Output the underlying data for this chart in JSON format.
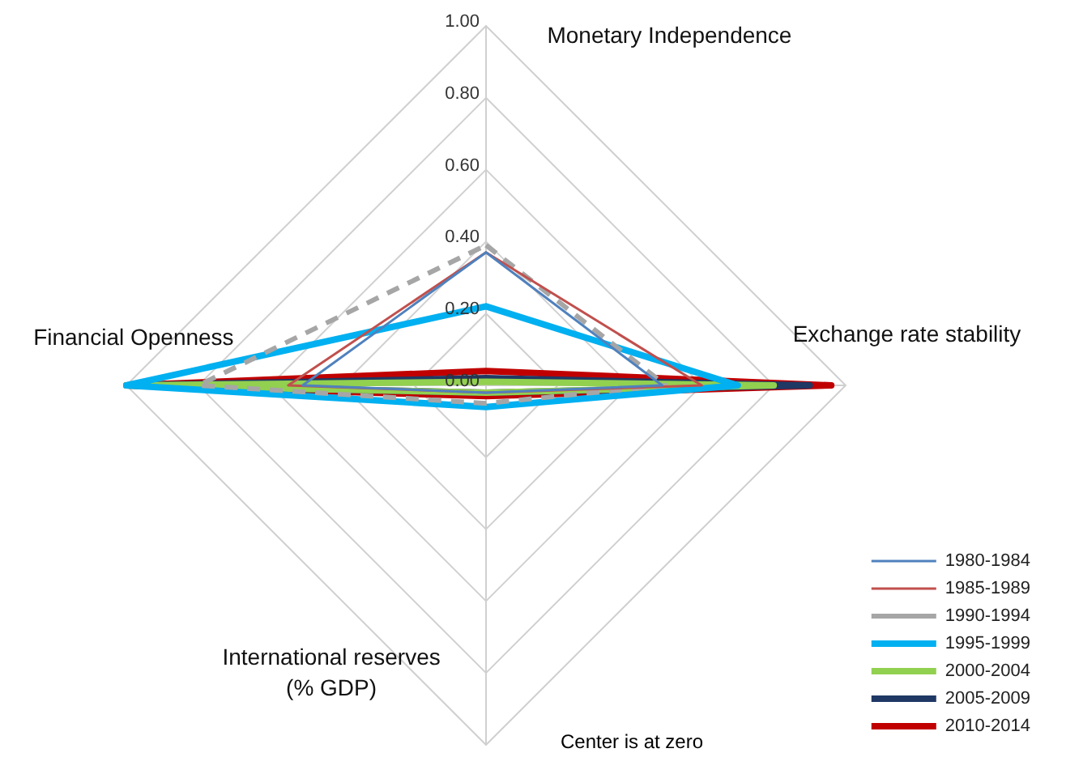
{
  "chart_data": {
    "type": "radar",
    "categories": [
      "Monetary Independence",
      "Exchange rate stability",
      "International reserves (% GDP)",
      "Financial Openness"
    ],
    "ylim": [
      0,
      1
    ],
    "yticks": [
      {
        "value": 0,
        "label": "0.00"
      },
      {
        "value": 0.2,
        "label": "0.20"
      },
      {
        "value": 0.4,
        "label": "0.40"
      },
      {
        "value": 0.6,
        "label": "0.60"
      },
      {
        "value": 0.8,
        "label": "0.80"
      },
      {
        "value": 1,
        "label": "1.00"
      }
    ],
    "grid": true,
    "legend": "bottom right",
    "marker": "none",
    "annotations": [
      "Center is at zero"
    ],
    "series": [
      {
        "name": "1980-1984",
        "color": "#4f81bd",
        "values": [
          0.37,
          0.49,
          0.02,
          0.51
        ]
      },
      {
        "name": "1985-1989",
        "color": "#c0504d",
        "values": [
          0.37,
          0.6,
          0.02,
          0.55
        ]
      },
      {
        "name": "1990-1994",
        "color": "#a6a6a6",
        "line_style": "dashed",
        "values": [
          0.39,
          0.5,
          0.05,
          0.8
        ]
      },
      {
        "name": "1995-1999",
        "color": "#00b0f0",
        "values": [
          0.22,
          0.7,
          0.06,
          1
        ]
      },
      {
        "name": "2000-2004",
        "color": "#92d050",
        "values": [
          0.01,
          0.8,
          0.02,
          1
        ]
      },
      {
        "name": "2005-2009",
        "color": "#1f3864",
        "values": [
          0.02,
          0.9,
          0.02,
          1
        ]
      },
      {
        "name": "2010-2014",
        "color": "#c00000",
        "values": [
          0.04,
          0.96,
          0.03,
          1
        ]
      }
    ]
  }
}
